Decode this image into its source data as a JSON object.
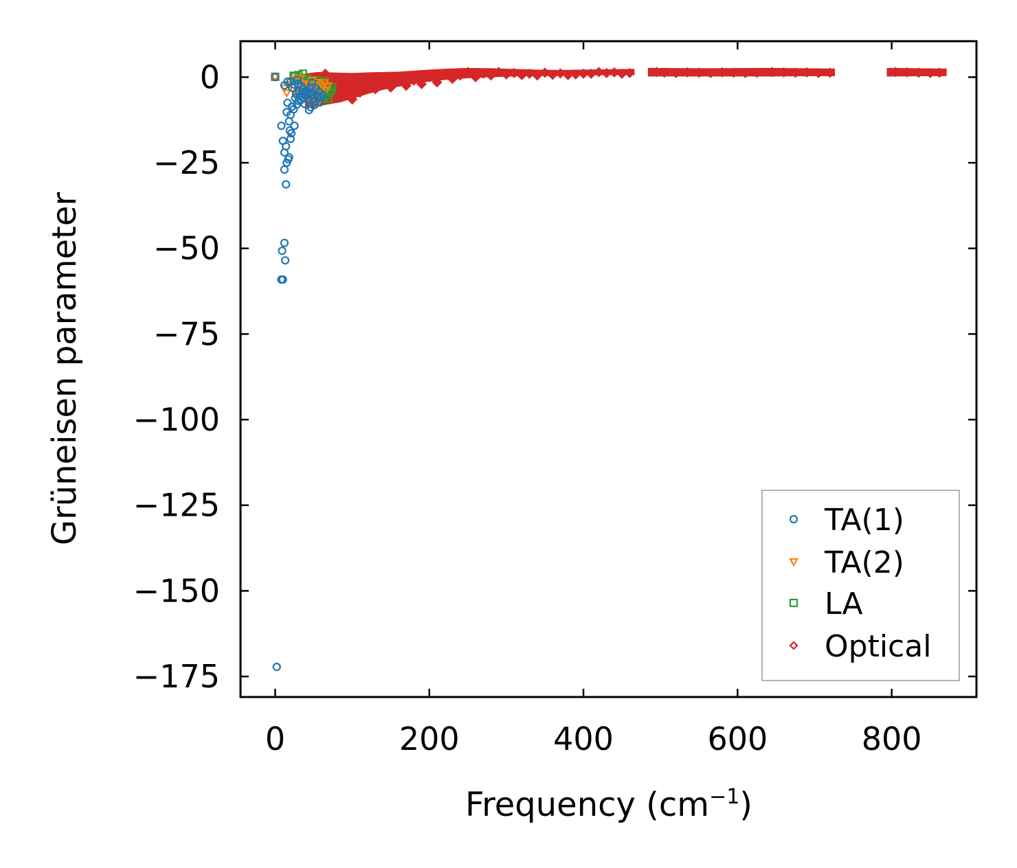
{
  "chart_data": {
    "type": "scatter",
    "title": "",
    "xlabel": "Frequency (cm",
    "xlabel_sup": "−1",
    "xlabel_end": ")",
    "ylabel": "Grüneisen parameter",
    "xlim": [
      -45,
      910
    ],
    "ylim": [
      -181,
      10.5
    ],
    "xticks": [
      0,
      200,
      400,
      600,
      800
    ],
    "yticks": [
      0,
      -25,
      -50,
      -75,
      -100,
      -125,
      -150,
      -175
    ],
    "xtick_labels": [
      "0",
      "200",
      "400",
      "600",
      "800"
    ],
    "ytick_labels": [
      "0",
      "−25",
      "−50",
      "−75",
      "−100",
      "−125",
      "−150",
      "−175"
    ],
    "grid": false,
    "legend_position": "lower right",
    "series": [
      {
        "name": "TA(1)",
        "marker": "circle",
        "color": "#1f77b4",
        "points": [
          [
            2,
            -172.2
          ],
          [
            8,
            -59.1
          ],
          [
            10,
            -59.1
          ],
          [
            9,
            -50.7
          ],
          [
            12,
            -48.4
          ],
          [
            13,
            -53.5
          ],
          [
            14,
            -31.3
          ],
          [
            12,
            -27.0
          ],
          [
            15,
            -25.0
          ],
          [
            18,
            -23.4
          ],
          [
            17,
            -24.0
          ],
          [
            12,
            -22.0
          ],
          [
            10,
            -18.6
          ],
          [
            14,
            -20.2
          ],
          [
            8,
            -14.2
          ],
          [
            20,
            -18.0
          ],
          [
            21,
            -16.4
          ],
          [
            19,
            -15.6
          ],
          [
            25,
            -14.2
          ],
          [
            18,
            -12.9
          ],
          [
            20,
            -11.0
          ],
          [
            15,
            -10.2
          ],
          [
            24,
            -9.4
          ],
          [
            22,
            -8.6
          ],
          [
            16,
            -7.5
          ],
          [
            28,
            -8.0
          ],
          [
            30,
            -6.9
          ],
          [
            26,
            -6.1
          ],
          [
            32,
            -5.5
          ],
          [
            35,
            -5.9
          ],
          [
            38,
            -4.7
          ],
          [
            40,
            -4.1
          ],
          [
            42,
            -3.9
          ],
          [
            45,
            -4.5
          ],
          [
            48,
            -5.1
          ],
          [
            50,
            -6.3
          ],
          [
            52,
            -7.1
          ],
          [
            55,
            -5.7
          ],
          [
            46,
            -8.8
          ],
          [
            44,
            -9.6
          ],
          [
            36,
            -3.5
          ],
          [
            34,
            -2.7
          ],
          [
            30,
            -1.9
          ],
          [
            25,
            -2.2
          ],
          [
            20,
            -1.2
          ],
          [
            22,
            -3.1
          ],
          [
            27,
            -4.9
          ],
          [
            33,
            -6.7
          ],
          [
            38,
            -7.8
          ],
          [
            42,
            -6.5
          ],
          [
            47,
            -2.9
          ],
          [
            53,
            -3.3
          ],
          [
            57,
            -4.3
          ],
          [
            60,
            -6.0
          ],
          [
            62,
            -5.2
          ],
          [
            58,
            -7.4
          ],
          [
            40,
            -5.4
          ],
          [
            37,
            -6.2
          ],
          [
            43,
            -5.0
          ],
          [
            31,
            -4.0
          ],
          [
            12,
            -2.4
          ],
          [
            0,
            0.1
          ],
          [
            16,
            -1.3
          ],
          [
            29,
            -0.8
          ],
          [
            48,
            -1.6
          ],
          [
            51,
            -8.1
          ]
        ]
      },
      {
        "name": "TA(2)",
        "marker": "triangle-down",
        "color": "#ff7f0e",
        "points": [
          [
            0,
            0.0
          ],
          [
            12,
            -3.2
          ],
          [
            15,
            -4.6
          ],
          [
            18,
            -2.2
          ],
          [
            22,
            -1.2
          ],
          [
            26,
            -0.6
          ],
          [
            30,
            -2.8
          ],
          [
            34,
            -3.6
          ],
          [
            38,
            -1.9
          ],
          [
            42,
            -2.4
          ],
          [
            46,
            -4.0
          ],
          [
            50,
            -3.1
          ],
          [
            54,
            -1.5
          ],
          [
            58,
            -2.2
          ],
          [
            62,
            -2.9
          ],
          [
            66,
            -3.8
          ],
          [
            45,
            -5.3
          ],
          [
            40,
            -6.1
          ],
          [
            36,
            -4.9
          ],
          [
            52,
            -6.6
          ],
          [
            56,
            -5.0
          ],
          [
            60,
            -4.4
          ],
          [
            64,
            -1.6
          ],
          [
            68,
            -2.6
          ],
          [
            28,
            -5.6
          ],
          [
            33,
            -0.3
          ],
          [
            24,
            -3.9
          ],
          [
            48,
            -0.9
          ],
          [
            57,
            -7.0
          ],
          [
            44,
            -7.6
          ]
        ]
      },
      {
        "name": "LA",
        "marker": "square",
        "color": "#2ca02c",
        "points": [
          [
            0,
            0.1
          ],
          [
            24,
            0.4
          ],
          [
            30,
            0.6
          ],
          [
            36,
            1.0
          ],
          [
            42,
            -0.6
          ],
          [
            48,
            -1.4
          ],
          [
            52,
            -2.2
          ],
          [
            56,
            -3.2
          ],
          [
            60,
            -4.0
          ],
          [
            64,
            -3.4
          ],
          [
            68,
            -2.6
          ],
          [
            70,
            -4.5
          ],
          [
            66,
            -5.4
          ],
          [
            62,
            -6.1
          ],
          [
            58,
            -2.8
          ],
          [
            54,
            -0.9
          ],
          [
            46,
            -1.9
          ],
          [
            40,
            -2.4
          ],
          [
            34,
            -0.2
          ],
          [
            28,
            -1.1
          ],
          [
            72,
            -3.8
          ],
          [
            74,
            -2.9
          ],
          [
            50,
            -4.8
          ],
          [
            44,
            -3.6
          ],
          [
            38,
            -1.5
          ],
          [
            26,
            0.2
          ],
          [
            32,
            -0.5
          ],
          [
            64,
            -1.2
          ],
          [
            69,
            -6.3
          ],
          [
            59,
            -5.9
          ]
        ]
      },
      {
        "name": "Optical",
        "marker": "diamond",
        "color": "#d62728",
        "points": [
          [
            60,
            -6.5
          ],
          [
            65,
            1.0
          ],
          [
            75,
            -5.0
          ],
          [
            80,
            -4.0
          ],
          [
            90,
            -3.5
          ],
          [
            100,
            -6.5
          ],
          [
            110,
            -4.5
          ],
          [
            120,
            -1.0
          ],
          [
            130,
            -3.5
          ],
          [
            140,
            -1.5
          ],
          [
            150,
            -3.0
          ],
          [
            160,
            -0.5
          ],
          [
            170,
            -2.5
          ],
          [
            180,
            -1.0
          ],
          [
            190,
            -2.0
          ],
          [
            200,
            0.0
          ],
          [
            210,
            -1.5
          ],
          [
            220,
            1.0
          ],
          [
            230,
            -0.5
          ],
          [
            240,
            0.5
          ],
          [
            250,
            1.5
          ],
          [
            260,
            0.0
          ],
          [
            270,
            1.0
          ],
          [
            280,
            0.5
          ],
          [
            290,
            1.5
          ],
          [
            300,
            0.8
          ],
          [
            310,
            1.2
          ],
          [
            320,
            0.6
          ],
          [
            330,
            1.0
          ],
          [
            340,
            0.5
          ],
          [
            350,
            1.3
          ],
          [
            360,
            0.7
          ],
          [
            370,
            1.1
          ],
          [
            380,
            0.6
          ],
          [
            390,
            0.8
          ],
          [
            400,
            1.0
          ],
          [
            410,
            1.0
          ],
          [
            420,
            1.5
          ],
          [
            430,
            1.2
          ],
          [
            440,
            1.4
          ],
          [
            450,
            1.0
          ],
          [
            460,
            1.2
          ],
          [
            495,
            1.5
          ],
          [
            505,
            1.3
          ],
          [
            520,
            1.2
          ],
          [
            535,
            1.4
          ],
          [
            550,
            1.3
          ],
          [
            565,
            1.2
          ],
          [
            580,
            1.4
          ],
          [
            595,
            1.3
          ],
          [
            610,
            1.2
          ],
          [
            625,
            1.3
          ],
          [
            645,
            1.5
          ],
          [
            660,
            1.4
          ],
          [
            675,
            1.3
          ],
          [
            690,
            1.4
          ],
          [
            705,
            1.2
          ],
          [
            720,
            1.3
          ],
          [
            805,
            1.5
          ],
          [
            820,
            1.4
          ],
          [
            835,
            1.3
          ],
          [
            850,
            1.2
          ],
          [
            862,
            1.3
          ]
        ],
        "bands": [
          [
            [
              40,
              -9.0
            ],
            [
              55,
              -8.2
            ],
            [
              70,
              -7.6
            ],
            [
              85,
              -7.0
            ],
            [
              100,
              -6.0
            ],
            [
              120,
              -4.6
            ],
            [
              140,
              -3.4
            ],
            [
              160,
              -2.5
            ],
            [
              180,
              -1.6
            ],
            [
              200,
              -1.0
            ],
            [
              225,
              -0.4
            ],
            [
              250,
              0.0
            ],
            [
              280,
              0.3
            ],
            [
              310,
              0.5
            ],
            [
              340,
              0.6
            ],
            [
              370,
              0.7
            ],
            [
              400,
              0.8
            ],
            [
              430,
              0.9
            ],
            [
              465,
              0.9
            ],
            [
              465,
              2.1
            ],
            [
              430,
              2.0
            ],
            [
              400,
              1.9
            ],
            [
              370,
              1.8
            ],
            [
              340,
              1.9
            ],
            [
              310,
              2.1
            ],
            [
              280,
              2.3
            ],
            [
              250,
              2.4
            ],
            [
              225,
              2.2
            ],
            [
              200,
              1.9
            ],
            [
              180,
              1.6
            ],
            [
              160,
              1.3
            ],
            [
              140,
              1.2
            ],
            [
              120,
              1.1
            ],
            [
              100,
              0.9
            ],
            [
              85,
              1.0
            ],
            [
              70,
              1.1
            ],
            [
              55,
              1.2
            ],
            [
              40,
              0.8
            ]
          ],
          [
            [
              485,
              0.5
            ],
            [
              560,
              0.5
            ],
            [
              640,
              0.5
            ],
            [
              725,
              0.6
            ],
            [
              725,
              2.2
            ],
            [
              640,
              2.4
            ],
            [
              560,
              2.3
            ],
            [
              485,
              2.4
            ]
          ],
          [
            [
              795,
              0.5
            ],
            [
              870,
              0.6
            ],
            [
              870,
              2.2
            ],
            [
              795,
              2.4
            ]
          ]
        ]
      }
    ]
  }
}
